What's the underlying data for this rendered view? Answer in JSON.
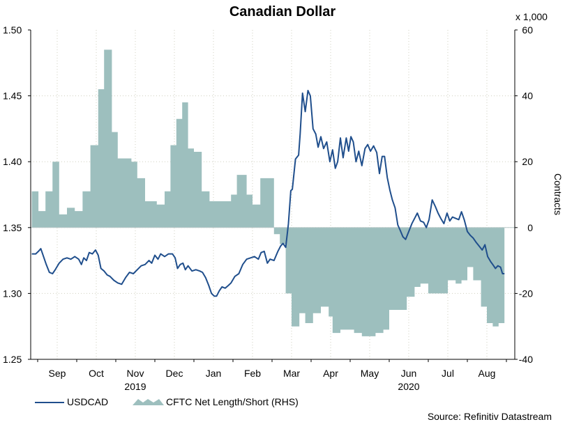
{
  "chart_data": {
    "type": "line+area",
    "title": "Canadian Dollar",
    "left_axis": {
      "min": 1.25,
      "max": 1.5,
      "ticks": [
        "1.25",
        "1.30",
        "1.35",
        "1.40",
        "1.45",
        "1.50"
      ]
    },
    "right_axis": {
      "label": "Contracts",
      "multiplier": "x 1,000",
      "min": -40,
      "max": 60,
      "ticks": [
        "-40",
        "-20",
        "0",
        "20",
        "40",
        "60"
      ]
    },
    "months": [
      "Sep",
      "Oct",
      "Nov",
      "Dec",
      "Jan",
      "Feb",
      "Mar",
      "Apr",
      "May",
      "Jun",
      "Jul",
      "Aug"
    ],
    "years": [
      {
        "label": "2019",
        "month_index": 1.5
      },
      {
        "label": "2020",
        "month_index": 8.5
      }
    ],
    "x_start": -0.65,
    "x_end": 11.45,
    "series": [
      {
        "name": "USDCAD",
        "axis": "left",
        "color": "#1f4e8c",
        "points": [
          [
            -0.65,
            1.33
          ],
          [
            -0.55,
            1.33
          ],
          [
            -0.48,
            1.332
          ],
          [
            -0.42,
            1.334
          ],
          [
            -0.35,
            1.328
          ],
          [
            -0.28,
            1.322
          ],
          [
            -0.2,
            1.316
          ],
          [
            -0.12,
            1.315
          ],
          [
            -0.05,
            1.318
          ],
          [
            0.05,
            1.323
          ],
          [
            0.15,
            1.326
          ],
          [
            0.25,
            1.327
          ],
          [
            0.35,
            1.326
          ],
          [
            0.45,
            1.328
          ],
          [
            0.55,
            1.326
          ],
          [
            0.62,
            1.322
          ],
          [
            0.68,
            1.327
          ],
          [
            0.75,
            1.325
          ],
          [
            0.82,
            1.331
          ],
          [
            0.9,
            1.33
          ],
          [
            0.98,
            1.333
          ],
          [
            1.05,
            1.329
          ],
          [
            1.12,
            1.319
          ],
          [
            1.2,
            1.317
          ],
          [
            1.28,
            1.314
          ],
          [
            1.35,
            1.313
          ],
          [
            1.45,
            1.31
          ],
          [
            1.55,
            1.308
          ],
          [
            1.65,
            1.307
          ],
          [
            1.75,
            1.312
          ],
          [
            1.85,
            1.316
          ],
          [
            1.95,
            1.315
          ],
          [
            2.05,
            1.318
          ],
          [
            2.15,
            1.321
          ],
          [
            2.25,
            1.322
          ],
          [
            2.35,
            1.325
          ],
          [
            2.42,
            1.323
          ],
          [
            2.5,
            1.329
          ],
          [
            2.58,
            1.326
          ],
          [
            2.65,
            1.33
          ],
          [
            2.75,
            1.328
          ],
          [
            2.85,
            1.33
          ],
          [
            2.95,
            1.33
          ],
          [
            3.02,
            1.327
          ],
          [
            3.08,
            1.319
          ],
          [
            3.15,
            1.322
          ],
          [
            3.22,
            1.323
          ],
          [
            3.28,
            1.318
          ],
          [
            3.35,
            1.321
          ],
          [
            3.45,
            1.317
          ],
          [
            3.55,
            1.318
          ],
          [
            3.65,
            1.317
          ],
          [
            3.72,
            1.316
          ],
          [
            3.8,
            1.312
          ],
          [
            3.88,
            1.306
          ],
          [
            3.95,
            1.3
          ],
          [
            4.02,
            1.298
          ],
          [
            4.08,
            1.298
          ],
          [
            4.15,
            1.302
          ],
          [
            4.22,
            1.305
          ],
          [
            4.3,
            1.304
          ],
          [
            4.38,
            1.306
          ],
          [
            4.45,
            1.308
          ],
          [
            4.55,
            1.313
          ],
          [
            4.65,
            1.315
          ],
          [
            4.75,
            1.322
          ],
          [
            4.85,
            1.326
          ],
          [
            4.95,
            1.327
          ],
          [
            5.05,
            1.328
          ],
          [
            5.15,
            1.326
          ],
          [
            5.22,
            1.331
          ],
          [
            5.3,
            1.332
          ],
          [
            5.38,
            1.323
          ],
          [
            5.45,
            1.326
          ],
          [
            5.55,
            1.325
          ],
          [
            5.65,
            1.332
          ],
          [
            5.72,
            1.336
          ],
          [
            5.78,
            1.338
          ],
          [
            5.85,
            1.335
          ],
          [
            5.92,
            1.353
          ],
          [
            5.98,
            1.378
          ],
          [
            6.02,
            1.379
          ],
          [
            6.1,
            1.402
          ],
          [
            6.18,
            1.405
          ],
          [
            6.22,
            1.421
          ],
          [
            6.28,
            1.452
          ],
          [
            6.35,
            1.438
          ],
          [
            6.42,
            1.454
          ],
          [
            6.48,
            1.45
          ],
          [
            6.55,
            1.425
          ],
          [
            6.62,
            1.421
          ],
          [
            6.68,
            1.411
          ],
          [
            6.75,
            1.419
          ],
          [
            6.82,
            1.41
          ],
          [
            6.9,
            1.415
          ],
          [
            6.98,
            1.4
          ],
          [
            7.05,
            1.409
          ],
          [
            7.12,
            1.395
          ],
          [
            7.18,
            1.4
          ],
          [
            7.25,
            1.418
          ],
          [
            7.32,
            1.403
          ],
          [
            7.4,
            1.418
          ],
          [
            7.46,
            1.408
          ],
          [
            7.52,
            1.419
          ],
          [
            7.58,
            1.415
          ],
          [
            7.65,
            1.4
          ],
          [
            7.72,
            1.408
          ],
          [
            7.8,
            1.397
          ],
          [
            7.88,
            1.41
          ],
          [
            7.95,
            1.413
          ],
          [
            8.02,
            1.408
          ],
          [
            8.1,
            1.412
          ],
          [
            8.18,
            1.407
          ],
          [
            8.25,
            1.391
          ],
          [
            8.32,
            1.404
          ],
          [
            8.38,
            1.404
          ],
          [
            8.45,
            1.388
          ],
          [
            8.52,
            1.378
          ],
          [
            8.58,
            1.371
          ],
          [
            8.65,
            1.365
          ],
          [
            8.72,
            1.352
          ],
          [
            8.78,
            1.348
          ],
          [
            8.85,
            1.343
          ],
          [
            8.92,
            1.341
          ],
          [
            9.0,
            1.347
          ],
          [
            9.08,
            1.353
          ],
          [
            9.15,
            1.357
          ],
          [
            9.22,
            1.361
          ],
          [
            9.3,
            1.355
          ],
          [
            9.38,
            1.354
          ],
          [
            9.45,
            1.35
          ],
          [
            9.52,
            1.356
          ],
          [
            9.6,
            1.371
          ],
          [
            9.68,
            1.366
          ],
          [
            9.75,
            1.361
          ],
          [
            9.82,
            1.357
          ],
          [
            9.9,
            1.353
          ],
          [
            9.98,
            1.361
          ],
          [
            10.05,
            1.355
          ],
          [
            10.12,
            1.358
          ],
          [
            10.2,
            1.357
          ],
          [
            10.28,
            1.356
          ],
          [
            10.35,
            1.362
          ],
          [
            10.42,
            1.356
          ],
          [
            10.5,
            1.347
          ],
          [
            10.58,
            1.344
          ],
          [
            10.65,
            1.342
          ],
          [
            10.72,
            1.339
          ],
          [
            10.8,
            1.336
          ],
          [
            10.88,
            1.333
          ],
          [
            10.95,
            1.337
          ],
          [
            11.02,
            1.328
          ],
          [
            11.1,
            1.324
          ],
          [
            11.15,
            1.322
          ],
          [
            11.22,
            1.319
          ],
          [
            11.28,
            1.321
          ],
          [
            11.35,
            1.32
          ],
          [
            11.4,
            1.315
          ],
          [
            11.45,
            1.315
          ]
        ]
      },
      {
        "name": "CFTC Net Length/Short (RHS)",
        "axis": "right",
        "color": "#9dbfbe",
        "steps": [
          [
            -0.65,
            11
          ],
          [
            -0.48,
            5
          ],
          [
            -0.3,
            11
          ],
          [
            -0.12,
            20
          ],
          [
            0.05,
            4
          ],
          [
            0.25,
            6
          ],
          [
            0.45,
            5
          ],
          [
            0.65,
            11
          ],
          [
            0.85,
            25
          ],
          [
            1.05,
            42
          ],
          [
            1.2,
            54
          ],
          [
            1.4,
            29
          ],
          [
            1.55,
            21
          ],
          [
            1.75,
            21
          ],
          [
            1.9,
            20
          ],
          [
            2.05,
            15
          ],
          [
            2.25,
            8
          ],
          [
            2.4,
            8
          ],
          [
            2.55,
            7
          ],
          [
            2.75,
            11
          ],
          [
            2.9,
            25
          ],
          [
            3.05,
            33
          ],
          [
            3.2,
            38
          ],
          [
            3.35,
            24
          ],
          [
            3.5,
            23
          ],
          [
            3.7,
            11
          ],
          [
            3.9,
            8
          ],
          [
            4.05,
            8
          ],
          [
            4.25,
            8
          ],
          [
            4.45,
            10
          ],
          [
            4.6,
            16
          ],
          [
            4.85,
            10
          ],
          [
            5.0,
            7
          ],
          [
            5.2,
            15
          ],
          [
            5.35,
            15
          ],
          [
            5.55,
            -2
          ],
          [
            5.7,
            -5
          ],
          [
            5.85,
            -20
          ],
          [
            6.0,
            -30
          ],
          [
            6.2,
            -26
          ],
          [
            6.35,
            -29
          ],
          [
            6.55,
            -26
          ],
          [
            6.75,
            -24
          ],
          [
            6.95,
            -27
          ],
          [
            7.05,
            -32
          ],
          [
            7.25,
            -31
          ],
          [
            7.45,
            -31
          ],
          [
            7.6,
            -32
          ],
          [
            7.8,
            -33
          ],
          [
            8.0,
            -33
          ],
          [
            8.15,
            -32
          ],
          [
            8.35,
            -31
          ],
          [
            8.5,
            -25
          ],
          [
            8.75,
            -25
          ],
          [
            8.95,
            -21
          ],
          [
            9.15,
            -18
          ],
          [
            9.3,
            -17
          ],
          [
            9.5,
            -20
          ],
          [
            9.65,
            -20
          ],
          [
            9.85,
            -20
          ],
          [
            10.0,
            -16
          ],
          [
            10.2,
            -17
          ],
          [
            10.35,
            -16
          ],
          [
            10.5,
            -12
          ],
          [
            10.65,
            -16
          ],
          [
            10.85,
            -24
          ],
          [
            11.0,
            -29
          ],
          [
            11.15,
            -30
          ],
          [
            11.3,
            -29
          ],
          [
            11.45,
            -29
          ]
        ]
      }
    ]
  },
  "legend": {
    "usdcad_label": "USDCAD",
    "cftc_label": "CFTC Net Length/Short (RHS)"
  },
  "source_label": "Source: Refinitiv Datastream"
}
